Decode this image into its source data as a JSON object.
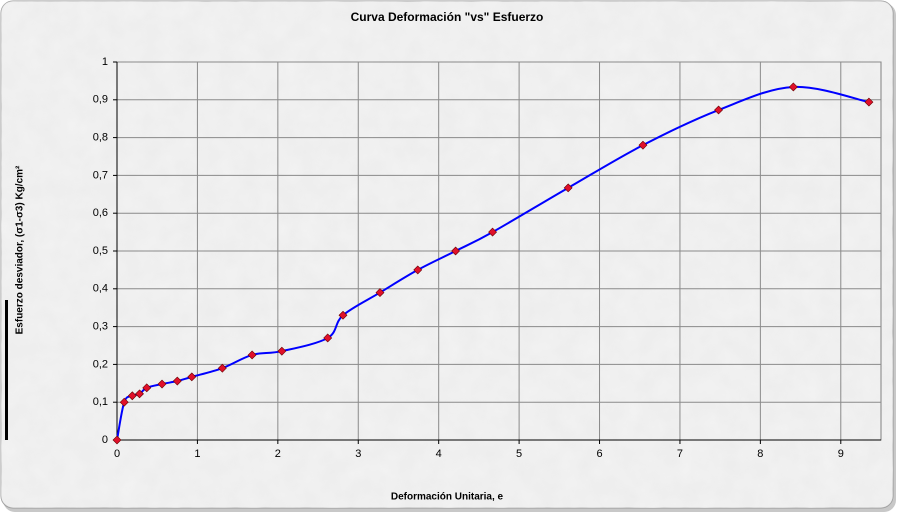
{
  "chart_data": {
    "type": "line",
    "title": "Curva Deformación \"vs\" Esfuerzo",
    "x_label": "Deformación Unitaria, e",
    "y_label": "Esfuerzo desviador, (σ1-σ3) Kg/cm²",
    "series": [
      {
        "color": "#0000ff",
        "marker_color": "#e0102a",
        "x": [
          0,
          0.09,
          0.19,
          0.28,
          0.37,
          0.56,
          0.75,
          0.93,
          1.31,
          1.68,
          2.05,
          2.62,
          2.81,
          3.27,
          3.74,
          4.21,
          4.67,
          5.61,
          6.54,
          7.48,
          8.41,
          9.35
        ],
        "values": [
          0,
          0.1,
          0.117,
          0.122,
          0.138,
          0.148,
          0.156,
          0.167,
          0.19,
          0.225,
          0.235,
          0.27,
          0.33,
          0.39,
          0.45,
          0.5,
          0.55,
          0.667,
          0.78,
          0.873,
          0.934,
          0.894
        ]
      }
    ],
    "xlim": [
      0,
      9.5
    ],
    "xticks": [
      0,
      1,
      2,
      3,
      4,
      5,
      6,
      7,
      8,
      9
    ],
    "ylim": [
      0,
      1
    ],
    "yticks": [
      0,
      {
        "value": 0.1,
        "label": "0,1"
      },
      {
        "value": 0.2,
        "label": "0,2"
      },
      {
        "value": 0.3,
        "label": "0,3"
      },
      {
        "value": 0.4,
        "label": "0,4"
      },
      {
        "value": 0.5,
        "label": "0,5"
      },
      {
        "value": 0.6,
        "label": "0,6"
      },
      {
        "value": 0.7,
        "label": "0,7"
      },
      {
        "value": 0.8,
        "label": "0,8"
      },
      {
        "value": 0.9,
        "label": "0,9"
      },
      1
    ],
    "grid": true
  }
}
